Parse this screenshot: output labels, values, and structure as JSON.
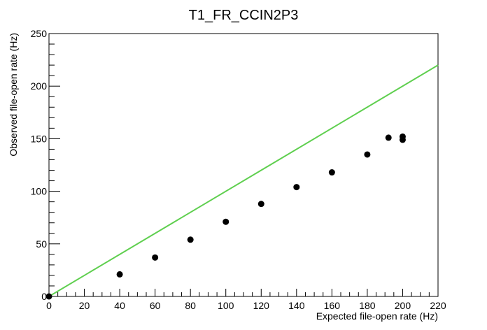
{
  "chart_data": {
    "type": "scatter",
    "title": "T1_FR_CCIN2P3",
    "xlabel": "Expected file-open rate (Hz)",
    "ylabel": "Observed file-open rate (Hz)",
    "xlim": [
      0,
      220
    ],
    "ylim": [
      0,
      250
    ],
    "x_ticks": [
      0,
      20,
      40,
      60,
      80,
      100,
      120,
      140,
      160,
      180,
      200,
      220
    ],
    "y_ticks": [
      0,
      50,
      100,
      150,
      200,
      250
    ],
    "grid": false,
    "series": [
      {
        "type": "scatter",
        "color": "#000000",
        "points": [
          {
            "x": 0,
            "y": 0
          },
          {
            "x": 40,
            "y": 21
          },
          {
            "x": 60,
            "y": 37
          },
          {
            "x": 80,
            "y": 54
          },
          {
            "x": 100,
            "y": 71
          },
          {
            "x": 120,
            "y": 88
          },
          {
            "x": 140,
            "y": 104
          },
          {
            "x": 160,
            "y": 118
          },
          {
            "x": 180,
            "y": 135
          },
          {
            "x": 192,
            "y": 151
          },
          {
            "x": 200,
            "y": 152
          },
          {
            "x": 200,
            "y": 149
          }
        ]
      },
      {
        "type": "line",
        "color": "#5fcf4f",
        "points": [
          {
            "x": 0,
            "y": 0
          },
          {
            "x": 220,
            "y": 220
          }
        ]
      }
    ]
  }
}
